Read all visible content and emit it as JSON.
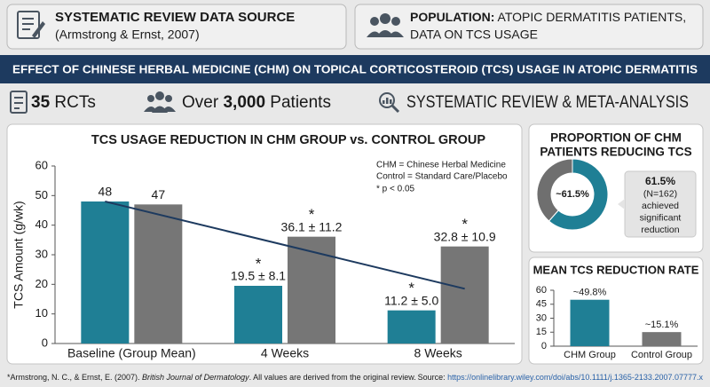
{
  "source_box": {
    "label": "SYSTEMATIC REVIEW DATA SOURCE",
    "text": "(Armstrong & Ernst, 2007)"
  },
  "population_box": {
    "label": "POPULATION:",
    "lines": [
      "ATOPIC DERMATITIS PATIENTS,",
      "DATA ON TCS USAGE"
    ]
  },
  "banner": "EFFECT OF CHINESE HERBAL MEDICINE (CHM) ON TOPICAL CORTICOSTEROID (TCS) USAGE IN ATOPIC DERMATITIS",
  "stats": [
    {
      "bold": "35",
      "text": "RCTs"
    },
    {
      "prefix": "Over",
      "bold": "3,000",
      "text": "Patients"
    },
    {
      "text": "SYSTEMATIC REVIEW & META-ANALYSIS"
    }
  ],
  "chart_data": [
    {
      "type": "bar",
      "title": "TCS USAGE REDUCTION IN CHM GROUP vs. CONTROL GROUP",
      "y_label": "TCS Amount (g/wk)",
      "notes": [
        "CHM = Chinese Herbal Medicine",
        "Control = Standard Care/Placebo",
        "* p < 0.05"
      ],
      "significance_marker": "*",
      "categories": [
        "Baseline (Group Mean)",
        "4 Weeks",
        "8 Weeks"
      ],
      "series": [
        {
          "color": "#1f7f95",
          "values": [
            48,
            19.5,
            11.2
          ],
          "value_labels": [
            "48",
            "19.5 ± 8.1",
            "11.2 ± 5.0"
          ],
          "significant": [
            false,
            true,
            true
          ]
        },
        {
          "color": "#767676",
          "values": [
            47,
            36.1,
            32.8
          ],
          "value_labels": [
            "47",
            "36.1 ± 11.2",
            "32.8 ± 10.9"
          ],
          "significant": [
            false,
            true,
            true
          ]
        }
      ],
      "trend_line": {
        "color": "#1d3a5f",
        "values": [
          48,
          18.5
        ]
      },
      "ylim": [
        0,
        60
      ],
      "yticks": [
        0,
        10,
        20,
        30,
        40,
        50,
        60
      ]
    },
    {
      "type": "pie",
      "title": [
        "PROPORTION OF CHM",
        "PATIENTS REDUCING TCS"
      ],
      "values": [
        61.5,
        38.5
      ],
      "colors": [
        "#1f7f95",
        "#6f6f6f"
      ],
      "center_label": "~61.5%",
      "callout": [
        "61.5%",
        "(N=162)",
        "achieved",
        "significant",
        "reduction"
      ]
    },
    {
      "type": "bar",
      "title": "MEAN TCS REDUCTION RATE",
      "categories": [
        "CHM Group",
        "Control Group"
      ],
      "values": [
        49.8,
        15.1
      ],
      "value_labels": [
        "~49.8%",
        "~15.1%"
      ],
      "colors": [
        "#1f7f95",
        "#767676"
      ],
      "ylim": [
        0,
        60
      ],
      "yticks": [
        0,
        15,
        30,
        45,
        60
      ]
    }
  ],
  "footer": {
    "citation_pre": "*Armstrong, N. C., & Ernst, E. (2007). ",
    "journal": "British Journal of Dermatology",
    "citation_post": ". All values are derived from the original review.",
    "source_label": "Source: ",
    "source_url": "https://onlinelibrary.wiley.com/doi/abs/10.1111/j.1365-2133.2007.07777.x"
  }
}
